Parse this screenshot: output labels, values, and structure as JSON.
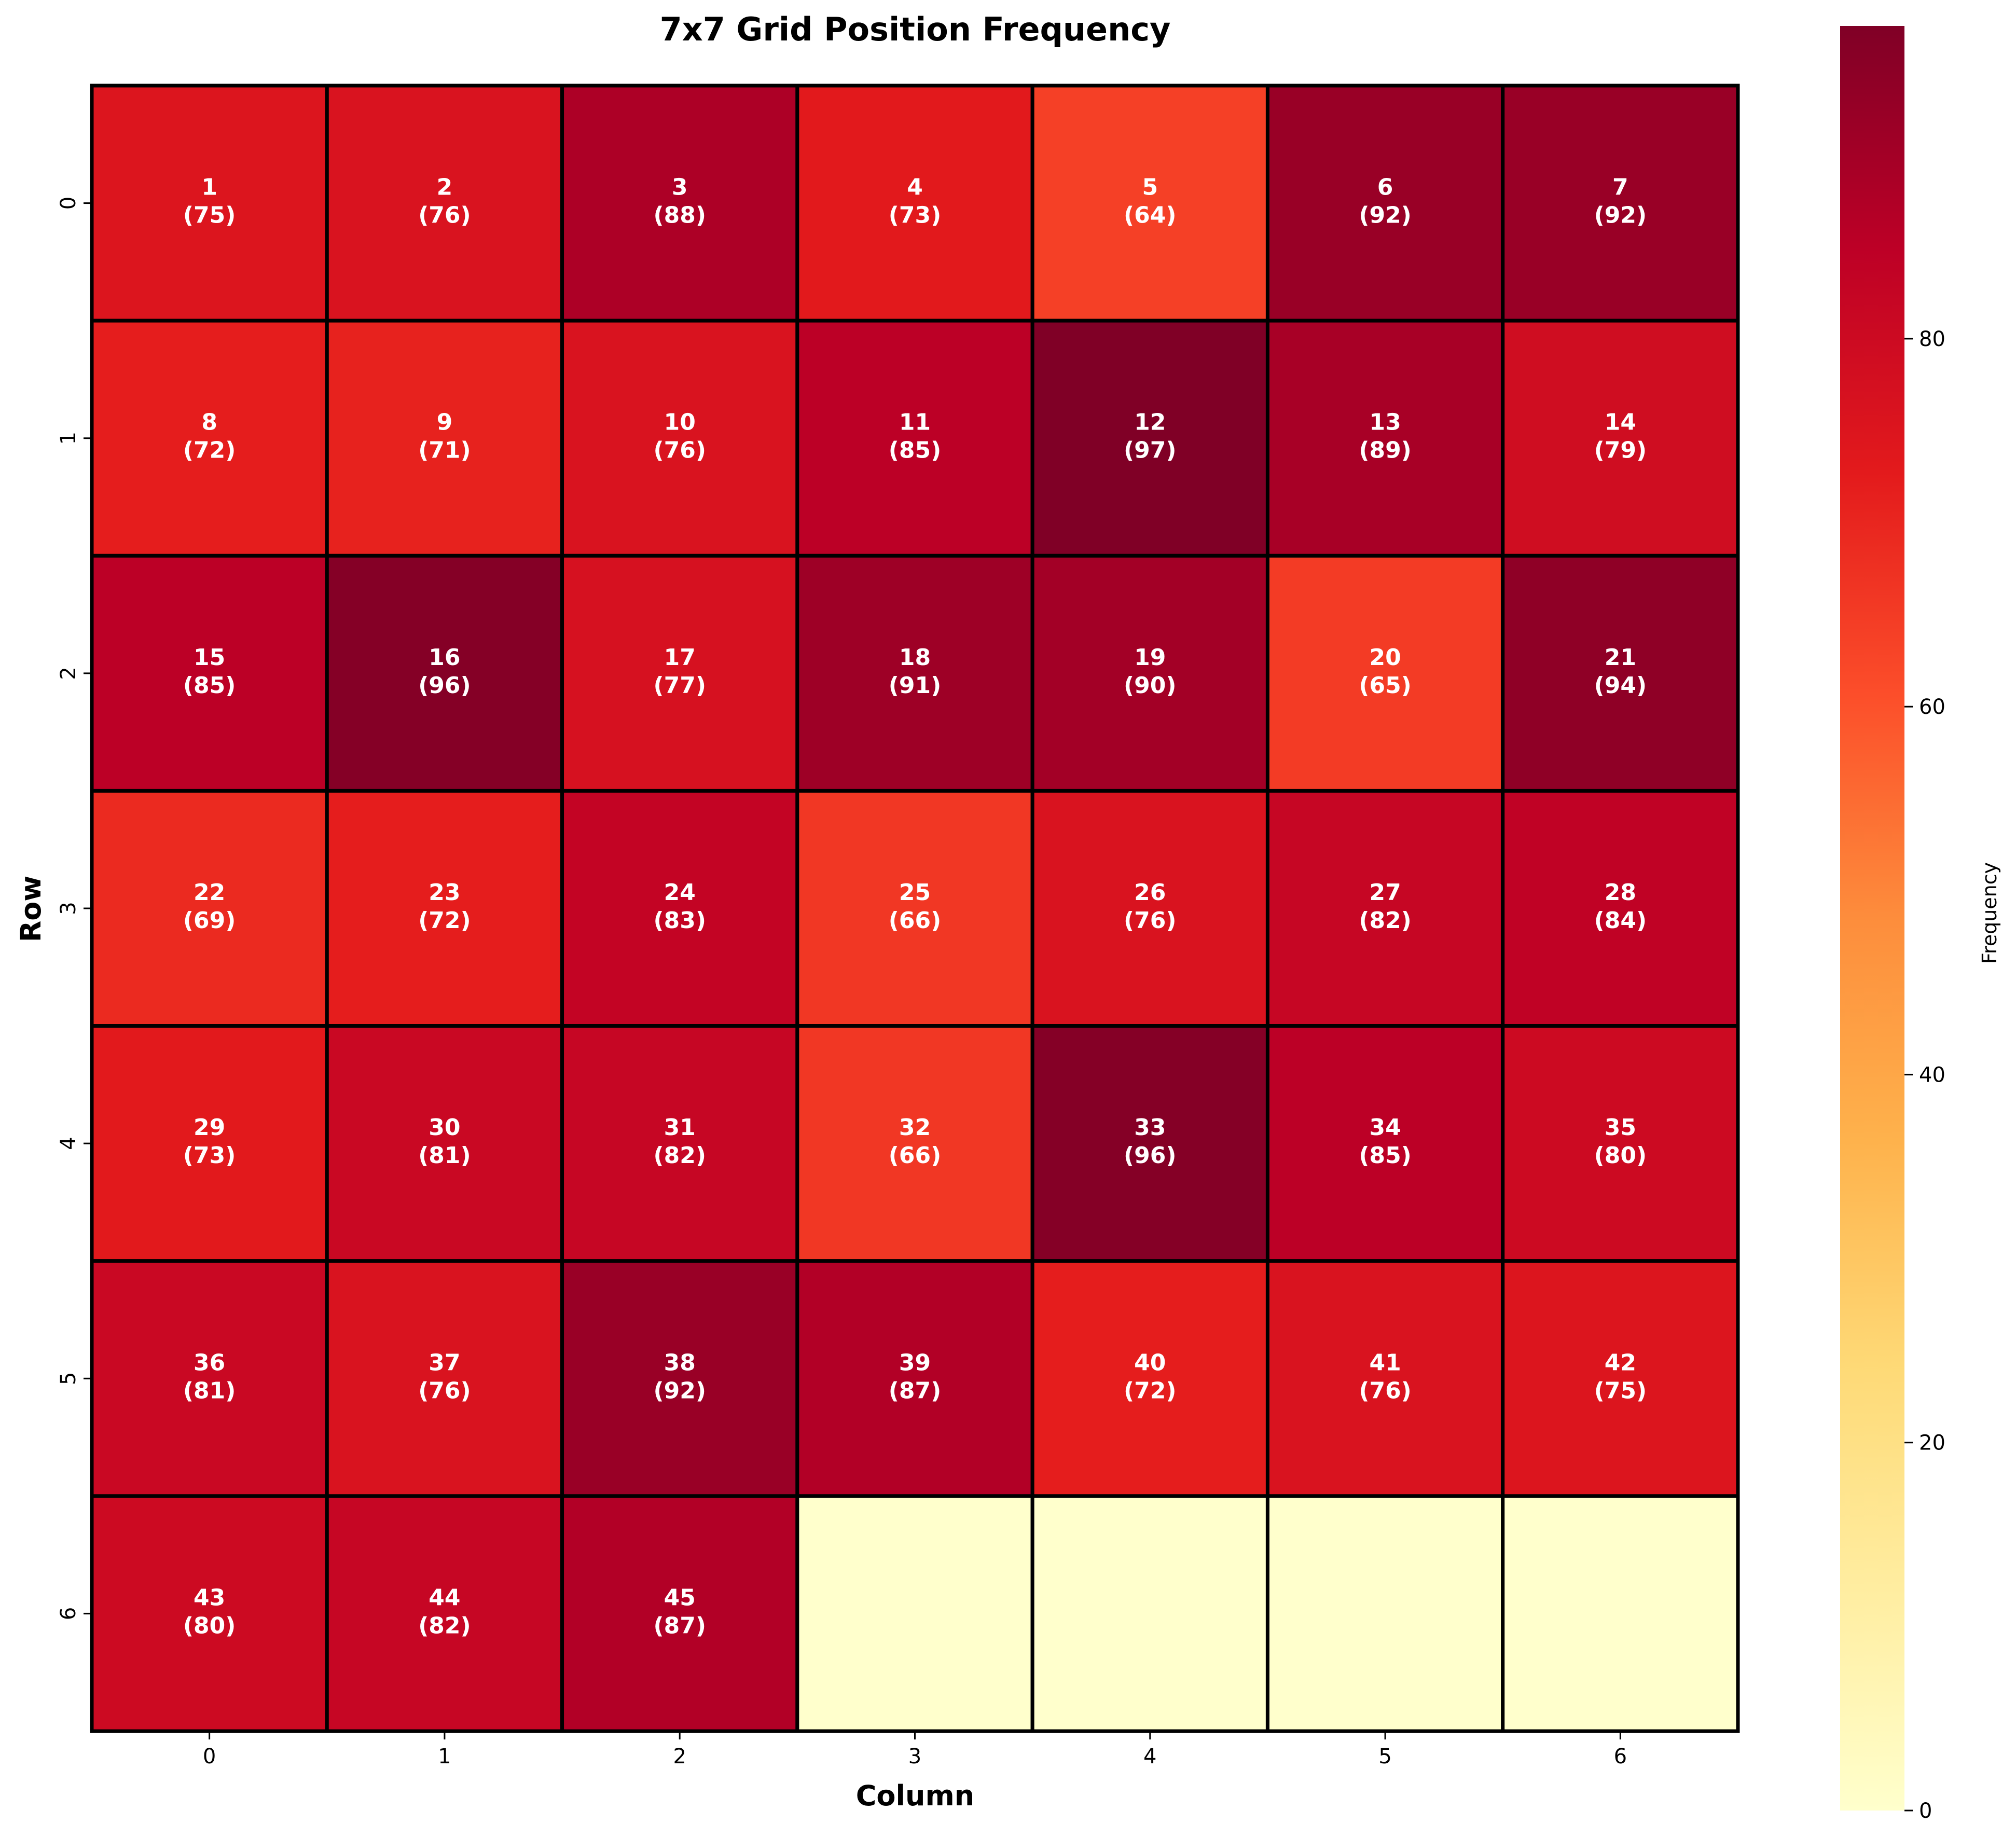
{
  "chart_data": {
    "type": "heatmap",
    "title": "7x7 Grid Position Frequency",
    "xlabel": "Column",
    "ylabel": "Row",
    "x_categories": [
      "0",
      "1",
      "2",
      "3",
      "4",
      "5",
      "6"
    ],
    "y_categories": [
      "0",
      "1",
      "2",
      "3",
      "4",
      "5",
      "6"
    ],
    "colorbar": {
      "label": "Frequency",
      "min": 0,
      "max": 97,
      "ticks": [
        0,
        20,
        40,
        60,
        80
      ],
      "colormap": "YlOrRd",
      "position": "right"
    },
    "cells": [
      [
        {
          "number": 1,
          "value": 75
        },
        {
          "number": 2,
          "value": 76
        },
        {
          "number": 3,
          "value": 88
        },
        {
          "number": 4,
          "value": 73
        },
        {
          "number": 5,
          "value": 64
        },
        {
          "number": 6,
          "value": 92
        },
        {
          "number": 7,
          "value": 92
        }
      ],
      [
        {
          "number": 8,
          "value": 72
        },
        {
          "number": 9,
          "value": 71
        },
        {
          "number": 10,
          "value": 76
        },
        {
          "number": 11,
          "value": 85
        },
        {
          "number": 12,
          "value": 97
        },
        {
          "number": 13,
          "value": 89
        },
        {
          "number": 14,
          "value": 79
        }
      ],
      [
        {
          "number": 15,
          "value": 85
        },
        {
          "number": 16,
          "value": 96
        },
        {
          "number": 17,
          "value": 77
        },
        {
          "number": 18,
          "value": 91
        },
        {
          "number": 19,
          "value": 90
        },
        {
          "number": 20,
          "value": 65
        },
        {
          "number": 21,
          "value": 94
        }
      ],
      [
        {
          "number": 22,
          "value": 69
        },
        {
          "number": 23,
          "value": 72
        },
        {
          "number": 24,
          "value": 83
        },
        {
          "number": 25,
          "value": 66
        },
        {
          "number": 26,
          "value": 76
        },
        {
          "number": 27,
          "value": 82
        },
        {
          "number": 28,
          "value": 84
        }
      ],
      [
        {
          "number": 29,
          "value": 73
        },
        {
          "number": 30,
          "value": 81
        },
        {
          "number": 31,
          "value": 82
        },
        {
          "number": 32,
          "value": 66
        },
        {
          "number": 33,
          "value": 96
        },
        {
          "number": 34,
          "value": 85
        },
        {
          "number": 35,
          "value": 80
        }
      ],
      [
        {
          "number": 36,
          "value": 81
        },
        {
          "number": 37,
          "value": 76
        },
        {
          "number": 38,
          "value": 92
        },
        {
          "number": 39,
          "value": 87
        },
        {
          "number": 40,
          "value": 72
        },
        {
          "number": 41,
          "value": 76
        },
        {
          "number": 42,
          "value": 75
        }
      ],
      [
        {
          "number": 43,
          "value": 80
        },
        {
          "number": 44,
          "value": 82
        },
        {
          "number": 45,
          "value": 87
        },
        {
          "number": null,
          "value": 0
        },
        {
          "number": null,
          "value": 0
        },
        {
          "number": null,
          "value": 0
        },
        {
          "number": null,
          "value": 0
        }
      ]
    ],
    "grid": false,
    "cell_label_color": "#ffffff",
    "cell_border_color": "#000000"
  }
}
